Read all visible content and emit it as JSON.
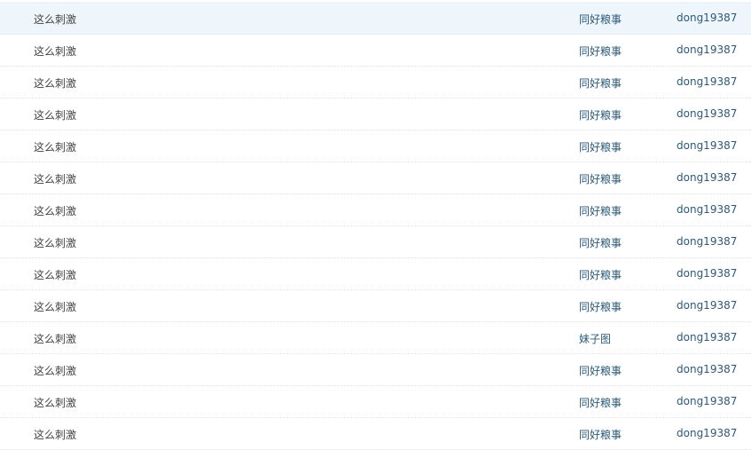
{
  "rows": [
    {
      "title": "这么刺激",
      "category": "同好粮事",
      "author": "dong19387"
    },
    {
      "title": "这么刺激",
      "category": "同好粮事",
      "author": "dong19387"
    },
    {
      "title": "这么刺激",
      "category": "同好粮事",
      "author": "dong19387"
    },
    {
      "title": "这么刺激",
      "category": "同好粮事",
      "author": "dong19387"
    },
    {
      "title": "这么刺激",
      "category": "同好粮事",
      "author": "dong19387"
    },
    {
      "title": "这么刺激",
      "category": "同好粮事",
      "author": "dong19387"
    },
    {
      "title": "这么刺激",
      "category": "同好粮事",
      "author": "dong19387"
    },
    {
      "title": "这么刺激",
      "category": "同好粮事",
      "author": "dong19387"
    },
    {
      "title": "这么刺激",
      "category": "同好粮事",
      "author": "dong19387"
    },
    {
      "title": "这么刺激",
      "category": "同好粮事",
      "author": "dong19387"
    },
    {
      "title": "这么刺激",
      "category": "妹子图",
      "author": "dong19387"
    },
    {
      "title": "这么刺激",
      "category": "同好粮事",
      "author": "dong19387"
    },
    {
      "title": "这么刺激",
      "category": "同好粮事",
      "author": "dong19387"
    },
    {
      "title": "这么刺激",
      "category": "同好粮事",
      "author": "dong19387"
    }
  ]
}
